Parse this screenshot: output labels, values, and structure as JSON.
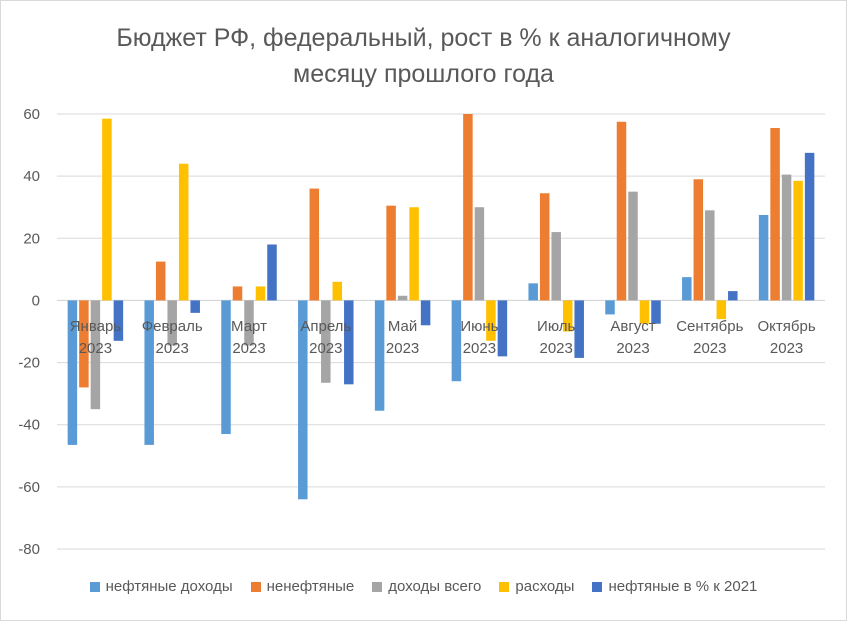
{
  "chart_data": {
    "type": "bar",
    "title_line1": "Бюджет РФ, федеральный, рост в % к аналогичному",
    "title_line2": "месяцу прошлого года",
    "xlabel": "",
    "ylabel": "",
    "ylim": [
      -80,
      60
    ],
    "yticks": [
      60,
      40,
      20,
      0,
      -20,
      -40,
      -60,
      -80
    ],
    "grid": true,
    "legend_position": "bottom",
    "categories": [
      [
        "Январь",
        "2023"
      ],
      [
        "Февраль",
        "2023"
      ],
      [
        "Март",
        "2023"
      ],
      [
        "Апрель",
        "2023"
      ],
      [
        "Май",
        "2023"
      ],
      [
        "Июнь",
        "2023"
      ],
      [
        "Июль",
        "2023"
      ],
      [
        "Август",
        "2023"
      ],
      [
        "Сентябрь",
        "2023"
      ],
      [
        "Октябрь",
        "2023"
      ]
    ],
    "series": [
      {
        "name": "нефтяные доходы",
        "color": "#5b9bd5",
        "values": [
          -46.5,
          -46.5,
          -43,
          -64,
          -35.5,
          -26,
          5.5,
          -4.5,
          7.5,
          27.5
        ]
      },
      {
        "name": "ненефтяные",
        "color": "#ed7d31",
        "values": [
          -28,
          12.5,
          4.5,
          36,
          30.5,
          60,
          34.5,
          57.5,
          39,
          55.5
        ]
      },
      {
        "name": "доходы всего",
        "color": "#a5a5a5",
        "values": [
          -35,
          -14.5,
          -14.5,
          -26.5,
          1.5,
          30,
          22,
          35,
          29,
          40.5
        ]
      },
      {
        "name": "расходы",
        "color": "#ffc000",
        "values": [
          58.5,
          44,
          4.5,
          6,
          30,
          -13,
          -10,
          -7.5,
          -6,
          38.5
        ]
      },
      {
        "name": "нефтяные в % к 2021",
        "color": "#4472c4",
        "values": [
          -13,
          -4,
          18,
          -27,
          -8,
          -18,
          -18.5,
          -7.5,
          3,
          47.5
        ]
      }
    ]
  }
}
